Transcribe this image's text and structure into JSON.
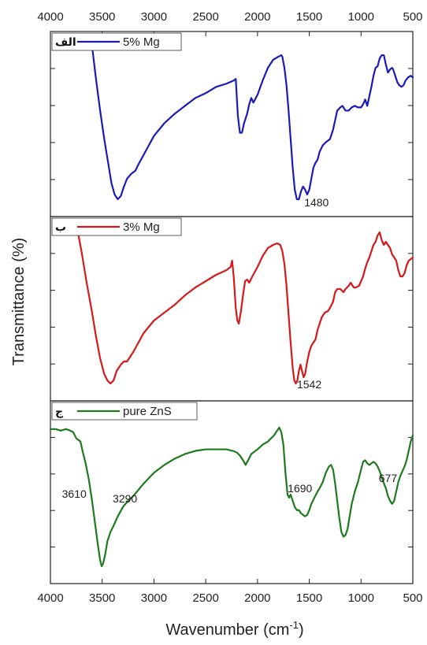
{
  "chart_data": {
    "type": "line",
    "xlabel": "Wavenumber (cm",
    "xlabel_sup": "-1",
    "xlabel_close": ")",
    "ylabel": "Transmittance (%)",
    "xlim": [
      4000,
      500
    ],
    "x_ticks": [
      4000,
      3500,
      3000,
      2500,
      2000,
      1500,
      1000,
      500
    ],
    "panels": [
      {
        "tag": "الف",
        "legend": "5% Mg",
        "color": "#1a1ab8",
        "annotations": [
          {
            "text": "1480",
            "x": 1430
          }
        ],
        "points": [
          [
            3600,
            1.0
          ],
          [
            3560,
            0.78
          ],
          [
            3520,
            0.58
          ],
          [
            3480,
            0.4
          ],
          [
            3440,
            0.24
          ],
          [
            3410,
            0.12
          ],
          [
            3380,
            0.05
          ],
          [
            3350,
            0.02
          ],
          [
            3320,
            0.04
          ],
          [
            3290,
            0.1
          ],
          [
            3260,
            0.15
          ],
          [
            3220,
            0.18
          ],
          [
            3180,
            0.2
          ],
          [
            3150,
            0.24
          ],
          [
            3100,
            0.3
          ],
          [
            3050,
            0.36
          ],
          [
            3000,
            0.42
          ],
          [
            2900,
            0.5
          ],
          [
            2800,
            0.56
          ],
          [
            2700,
            0.61
          ],
          [
            2600,
            0.66
          ],
          [
            2500,
            0.69
          ],
          [
            2400,
            0.73
          ],
          [
            2300,
            0.75
          ],
          [
            2230,
            0.77
          ],
          [
            2210,
            0.78
          ],
          [
            2190,
            0.55
          ],
          [
            2170,
            0.44
          ],
          [
            2150,
            0.44
          ],
          [
            2130,
            0.5
          ],
          [
            2100,
            0.56
          ],
          [
            2080,
            0.62
          ],
          [
            2060,
            0.66
          ],
          [
            2040,
            0.63
          ],
          [
            2000,
            0.68
          ],
          [
            1950,
            0.77
          ],
          [
            1900,
            0.85
          ],
          [
            1850,
            0.9
          ],
          [
            1800,
            0.92
          ],
          [
            1770,
            0.93
          ],
          [
            1760,
            0.92
          ],
          [
            1740,
            0.85
          ],
          [
            1720,
            0.74
          ],
          [
            1700,
            0.58
          ],
          [
            1680,
            0.4
          ],
          [
            1660,
            0.22
          ],
          [
            1640,
            0.08
          ],
          [
            1620,
            0.02
          ],
          [
            1600,
            0.02
          ],
          [
            1580,
            0.07
          ],
          [
            1560,
            0.1
          ],
          [
            1540,
            0.08
          ],
          [
            1520,
            0.05
          ],
          [
            1500,
            0.08
          ],
          [
            1480,
            0.15
          ],
          [
            1460,
            0.22
          ],
          [
            1440,
            0.25
          ],
          [
            1420,
            0.27
          ],
          [
            1400,
            0.32
          ],
          [
            1370,
            0.36
          ],
          [
            1340,
            0.38
          ],
          [
            1300,
            0.4
          ],
          [
            1270,
            0.46
          ],
          [
            1250,
            0.52
          ],
          [
            1230,
            0.58
          ],
          [
            1200,
            0.6
          ],
          [
            1180,
            0.61
          ],
          [
            1150,
            0.58
          ],
          [
            1120,
            0.58
          ],
          [
            1090,
            0.6
          ],
          [
            1060,
            0.61
          ],
          [
            1030,
            0.6
          ],
          [
            1000,
            0.6
          ],
          [
            980,
            0.62
          ],
          [
            960,
            0.65
          ],
          [
            940,
            0.61
          ],
          [
            920,
            0.67
          ],
          [
            900,
            0.73
          ],
          [
            880,
            0.8
          ],
          [
            860,
            0.85
          ],
          [
            840,
            0.86
          ],
          [
            820,
            0.91
          ],
          [
            800,
            0.93
          ],
          [
            780,
            0.93
          ],
          [
            760,
            0.87
          ],
          [
            740,
            0.82
          ],
          [
            720,
            0.84
          ],
          [
            700,
            0.85
          ],
          [
            690,
            0.84
          ],
          [
            670,
            0.8
          ],
          [
            650,
            0.76
          ],
          [
            630,
            0.74
          ],
          [
            610,
            0.73
          ],
          [
            590,
            0.74
          ],
          [
            570,
            0.77
          ],
          [
            545,
            0.79
          ],
          [
            520,
            0.8
          ],
          [
            500,
            0.79
          ]
        ]
      },
      {
        "tag": "ب",
        "legend": "3% Mg",
        "color": "#d41a1a",
        "annotations": [
          {
            "text": "1542",
            "x": 1500
          }
        ],
        "points": [
          [
            3740,
            1.0
          ],
          [
            3700,
            0.86
          ],
          [
            3650,
            0.66
          ],
          [
            3600,
            0.48
          ],
          [
            3560,
            0.32
          ],
          [
            3520,
            0.18
          ],
          [
            3480,
            0.08
          ],
          [
            3450,
            0.04
          ],
          [
            3420,
            0.02
          ],
          [
            3390,
            0.04
          ],
          [
            3360,
            0.1
          ],
          [
            3320,
            0.14
          ],
          [
            3290,
            0.16
          ],
          [
            3260,
            0.16
          ],
          [
            3200,
            0.22
          ],
          [
            3150,
            0.28
          ],
          [
            3100,
            0.34
          ],
          [
            3050,
            0.38
          ],
          [
            3000,
            0.42
          ],
          [
            2900,
            0.47
          ],
          [
            2800,
            0.52
          ],
          [
            2700,
            0.58
          ],
          [
            2600,
            0.63
          ],
          [
            2500,
            0.67
          ],
          [
            2400,
            0.71
          ],
          [
            2300,
            0.74
          ],
          [
            2260,
            0.76
          ],
          [
            2245,
            0.8
          ],
          [
            2230,
            0.7
          ],
          [
            2210,
            0.5
          ],
          [
            2195,
            0.42
          ],
          [
            2180,
            0.4
          ],
          [
            2160,
            0.48
          ],
          [
            2140,
            0.58
          ],
          [
            2120,
            0.67
          ],
          [
            2100,
            0.68
          ],
          [
            2080,
            0.66
          ],
          [
            2050,
            0.7
          ],
          [
            2000,
            0.76
          ],
          [
            1950,
            0.83
          ],
          [
            1900,
            0.88
          ],
          [
            1850,
            0.9
          ],
          [
            1810,
            0.91
          ],
          [
            1780,
            0.9
          ],
          [
            1760,
            0.86
          ],
          [
            1740,
            0.78
          ],
          [
            1720,
            0.64
          ],
          [
            1700,
            0.46
          ],
          [
            1680,
            0.28
          ],
          [
            1660,
            0.12
          ],
          [
            1645,
            0.04
          ],
          [
            1630,
            0.02
          ],
          [
            1615,
            0.04
          ],
          [
            1600,
            0.1
          ],
          [
            1585,
            0.14
          ],
          [
            1570,
            0.1
          ],
          [
            1555,
            0.06
          ],
          [
            1540,
            0.08
          ],
          [
            1520,
            0.16
          ],
          [
            1500,
            0.22
          ],
          [
            1480,
            0.26
          ],
          [
            1460,
            0.28
          ],
          [
            1440,
            0.3
          ],
          [
            1420,
            0.36
          ],
          [
            1400,
            0.4
          ],
          [
            1380,
            0.44
          ],
          [
            1350,
            0.47
          ],
          [
            1320,
            0.48
          ],
          [
            1300,
            0.5
          ],
          [
            1270,
            0.54
          ],
          [
            1250,
            0.6
          ],
          [
            1230,
            0.62
          ],
          [
            1200,
            0.62
          ],
          [
            1170,
            0.6
          ],
          [
            1150,
            0.62
          ],
          [
            1120,
            0.64
          ],
          [
            1100,
            0.66
          ],
          [
            1070,
            0.63
          ],
          [
            1050,
            0.63
          ],
          [
            1020,
            0.64
          ],
          [
            1000,
            0.67
          ],
          [
            980,
            0.7
          ],
          [
            960,
            0.75
          ],
          [
            940,
            0.79
          ],
          [
            920,
            0.82
          ],
          [
            900,
            0.86
          ],
          [
            880,
            0.9
          ],
          [
            860,
            0.92
          ],
          [
            840,
            0.96
          ],
          [
            820,
            0.98
          ],
          [
            800,
            0.93
          ],
          [
            780,
            0.9
          ],
          [
            760,
            0.92
          ],
          [
            740,
            0.9
          ],
          [
            720,
            0.88
          ],
          [
            700,
            0.84
          ],
          [
            680,
            0.82
          ],
          [
            660,
            0.8
          ],
          [
            640,
            0.74
          ],
          [
            620,
            0.7
          ],
          [
            600,
            0.7
          ],
          [
            580,
            0.72
          ],
          [
            560,
            0.77
          ],
          [
            540,
            0.8
          ],
          [
            520,
            0.81
          ],
          [
            500,
            0.82
          ]
        ]
      },
      {
        "tag": "ج",
        "legend": "pure ZnS",
        "color": "#1f7a1f",
        "annotations": [
          {
            "text": "3610",
            "x": 3770
          },
          {
            "text": "3290",
            "x": 3280
          },
          {
            "text": "1690",
            "x": 1590
          },
          {
            "text": "677",
            "x": 740
          }
        ],
        "points": [
          [
            4000,
            0.9
          ],
          [
            3950,
            0.9
          ],
          [
            3900,
            0.89
          ],
          [
            3850,
            0.9
          ],
          [
            3810,
            0.89
          ],
          [
            3780,
            0.88
          ],
          [
            3750,
            0.84
          ],
          [
            3710,
            0.82
          ],
          [
            3690,
            0.76
          ],
          [
            3660,
            0.68
          ],
          [
            3630,
            0.58
          ],
          [
            3600,
            0.45
          ],
          [
            3570,
            0.3
          ],
          [
            3540,
            0.15
          ],
          [
            3520,
            0.06
          ],
          [
            3505,
            0.02
          ],
          [
            3490,
            0.04
          ],
          [
            3470,
            0.1
          ],
          [
            3450,
            0.18
          ],
          [
            3420,
            0.24
          ],
          [
            3390,
            0.28
          ],
          [
            3350,
            0.34
          ],
          [
            3300,
            0.4
          ],
          [
            3250,
            0.44
          ],
          [
            3200,
            0.47
          ],
          [
            3100,
            0.55
          ],
          [
            3000,
            0.62
          ],
          [
            2900,
            0.67
          ],
          [
            2800,
            0.71
          ],
          [
            2700,
            0.74
          ],
          [
            2600,
            0.76
          ],
          [
            2500,
            0.77
          ],
          [
            2400,
            0.77
          ],
          [
            2300,
            0.77
          ],
          [
            2240,
            0.76
          ],
          [
            2200,
            0.75
          ],
          [
            2170,
            0.73
          ],
          [
            2140,
            0.7
          ],
          [
            2115,
            0.67
          ],
          [
            2090,
            0.7
          ],
          [
            2060,
            0.74
          ],
          [
            2000,
            0.77
          ],
          [
            1950,
            0.8
          ],
          [
            1900,
            0.82
          ],
          [
            1870,
            0.84
          ],
          [
            1840,
            0.86
          ],
          [
            1820,
            0.88
          ],
          [
            1800,
            0.9
          ],
          [
            1790,
            0.91
          ],
          [
            1770,
            0.88
          ],
          [
            1750,
            0.8
          ],
          [
            1730,
            0.62
          ],
          [
            1710,
            0.48
          ],
          [
            1695,
            0.46
          ],
          [
            1680,
            0.48
          ],
          [
            1660,
            0.44
          ],
          [
            1640,
            0.4
          ],
          [
            1620,
            0.38
          ],
          [
            1600,
            0.38
          ],
          [
            1580,
            0.36
          ],
          [
            1560,
            0.35
          ],
          [
            1540,
            0.34
          ],
          [
            1520,
            0.35
          ],
          [
            1500,
            0.38
          ],
          [
            1480,
            0.42
          ],
          [
            1450,
            0.46
          ],
          [
            1420,
            0.5
          ],
          [
            1400,
            0.52
          ],
          [
            1370,
            0.56
          ],
          [
            1340,
            0.62
          ],
          [
            1310,
            0.66
          ],
          [
            1290,
            0.67
          ],
          [
            1270,
            0.64
          ],
          [
            1250,
            0.55
          ],
          [
            1230,
            0.44
          ],
          [
            1210,
            0.33
          ],
          [
            1190,
            0.24
          ],
          [
            1170,
            0.21
          ],
          [
            1150,
            0.22
          ],
          [
            1130,
            0.26
          ],
          [
            1110,
            0.34
          ],
          [
            1090,
            0.42
          ],
          [
            1060,
            0.5
          ],
          [
            1030,
            0.56
          ],
          [
            1000,
            0.64
          ],
          [
            980,
            0.69
          ],
          [
            960,
            0.7
          ],
          [
            940,
            0.68
          ],
          [
            920,
            0.67
          ],
          [
            900,
            0.68
          ],
          [
            880,
            0.69
          ],
          [
            860,
            0.68
          ],
          [
            840,
            0.66
          ],
          [
            820,
            0.63
          ],
          [
            790,
            0.57
          ],
          [
            760,
            0.52
          ],
          [
            740,
            0.47
          ],
          [
            720,
            0.44
          ],
          [
            700,
            0.42
          ],
          [
            680,
            0.44
          ],
          [
            660,
            0.5
          ],
          [
            640,
            0.56
          ],
          [
            620,
            0.6
          ],
          [
            600,
            0.63
          ],
          [
            580,
            0.66
          ],
          [
            560,
            0.7
          ],
          [
            540,
            0.76
          ],
          [
            520,
            0.82
          ],
          [
            500,
            0.86
          ]
        ]
      }
    ]
  }
}
